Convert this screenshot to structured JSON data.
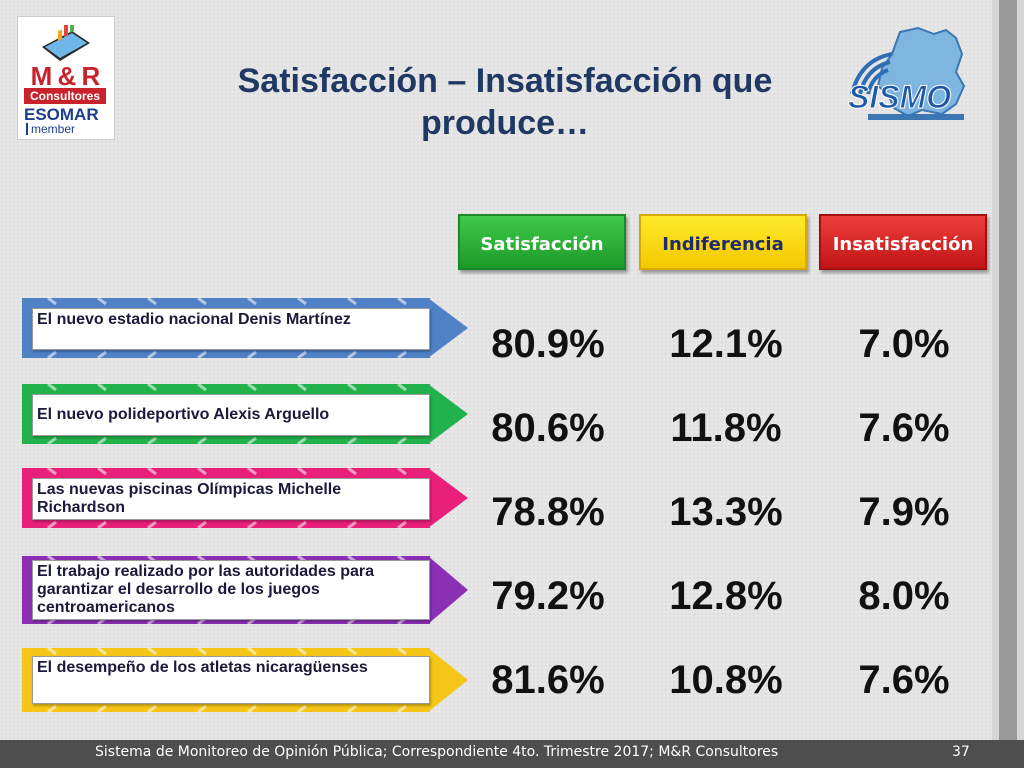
{
  "title": "Satisfacción – Insatisfacción que produce…",
  "logo_left": {
    "name": "M & R",
    "sub": "Consultores",
    "esomar": "ESOMAR",
    "member": "member"
  },
  "logo_right": {
    "name": "SISMO"
  },
  "headers": {
    "satisfaccion": "Satisfacción",
    "indiferencia": "Indiferencia",
    "insatisfaccion": "Insatisfacción"
  },
  "rows": [
    {
      "label": "El nuevo estadio nacional Denis Martínez",
      "satisfaccion": "80.9%",
      "indiferencia": "12.1%",
      "insatisfaccion": "7.0%",
      "color": "#4f81c7"
    },
    {
      "label": "El nuevo polideportivo Alexis Arguello",
      "satisfaccion": "80.6%",
      "indiferencia": "11.8%",
      "insatisfaccion": "7.6%",
      "color": "#22b24c"
    },
    {
      "label": "Las nuevas piscinas Olímpicas Michelle Richardson",
      "satisfaccion": "78.8%",
      "indiferencia": "13.3%",
      "insatisfaccion": "7.9%",
      "color": "#e8207a"
    },
    {
      "label": "El trabajo realizado por las autoridades para garantizar el desarrollo de los juegos centroamericanos",
      "satisfaccion": "79.2%",
      "indiferencia": "12.8%",
      "insatisfaccion": "8.0%",
      "color": "#8b2fb5"
    },
    {
      "label": "El desempeño de los atletas nicaragüenses",
      "satisfaccion": "81.6%",
      "indiferencia": "10.8%",
      "insatisfaccion": "7.6%",
      "color": "#f5c518"
    }
  ],
  "footer": "Sistema de Monitoreo de Opinión Pública; Correspondiente 4to. Trimestre 2017; M&R Consultores",
  "page_number": "37"
}
